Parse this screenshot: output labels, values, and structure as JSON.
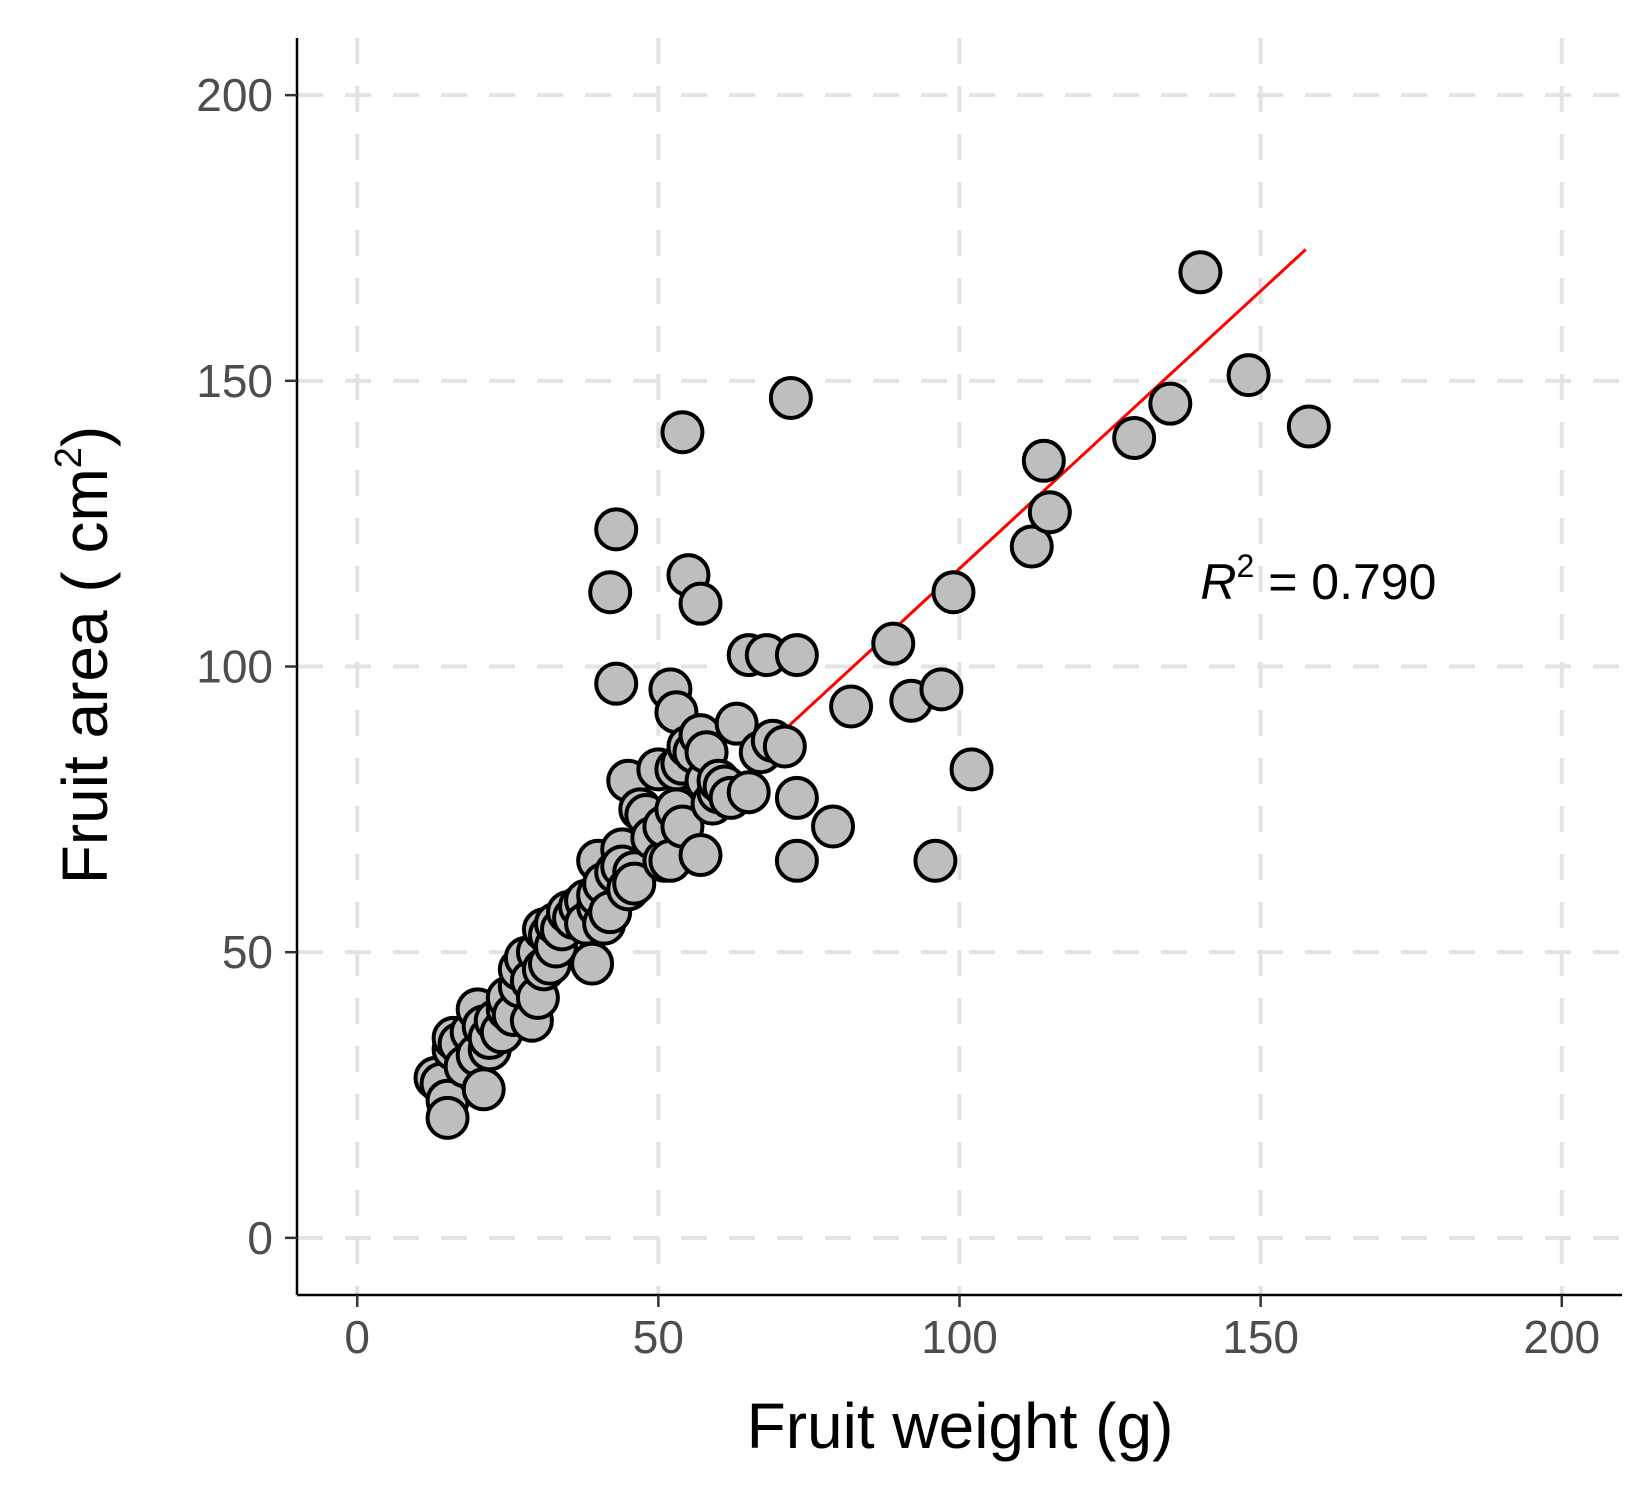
{
  "chart_data": {
    "type": "scatter",
    "xlabel": "Fruit weight (g)",
    "ylabel_main": "Fruit area ( cm",
    "ylabel_sup": "2",
    "ylabel_close": ")",
    "xlim": [
      -10,
      210
    ],
    "ylim": [
      -10,
      210
    ],
    "x_ticks": [
      0,
      50,
      100,
      150,
      200
    ],
    "y_ticks": [
      0,
      50,
      100,
      150,
      200
    ],
    "x_tick_labels": [
      "0",
      "50",
      "100",
      "150",
      "200"
    ],
    "y_tick_labels": [
      "0",
      "50",
      "100",
      "150",
      "200"
    ],
    "grid": "dashed major gridlines",
    "point_color": "#bebebe",
    "point_edge_color": "#000000",
    "fit_line": {
      "color": "#ff0000",
      "x": [
        70,
        157.5
      ],
      "y": [
        88,
        173
      ]
    },
    "annotation": {
      "r_symbol": "R",
      "sup": "2",
      "rest": " = 0.790",
      "x": 140,
      "y": 115
    },
    "points": [
      [
        13,
        28
      ],
      [
        14,
        27
      ],
      [
        15,
        24
      ],
      [
        15,
        21
      ],
      [
        16,
        33
      ],
      [
        16,
        35
      ],
      [
        17,
        34
      ],
      [
        18,
        30
      ],
      [
        19,
        36
      ],
      [
        20,
        32
      ],
      [
        20,
        40
      ],
      [
        21,
        37
      ],
      [
        21,
        26
      ],
      [
        22,
        33
      ],
      [
        22,
        35
      ],
      [
        23,
        38
      ],
      [
        24,
        36
      ],
      [
        25,
        40
      ],
      [
        25,
        42
      ],
      [
        26,
        39
      ],
      [
        27,
        44
      ],
      [
        27,
        47
      ],
      [
        28,
        49
      ],
      [
        29,
        38
      ],
      [
        29,
        45
      ],
      [
        30,
        42
      ],
      [
        30,
        50
      ],
      [
        31,
        47
      ],
      [
        31,
        54
      ],
      [
        32,
        48
      ],
      [
        32,
        53
      ],
      [
        33,
        51
      ],
      [
        33,
        55
      ],
      [
        34,
        54
      ],
      [
        35,
        57
      ],
      [
        36,
        56
      ],
      [
        37,
        58
      ],
      [
        38,
        59
      ],
      [
        38,
        55
      ],
      [
        39,
        48
      ],
      [
        40,
        58
      ],
      [
        40,
        60
      ],
      [
        40,
        66
      ],
      [
        41,
        62
      ],
      [
        41,
        55
      ],
      [
        42,
        57
      ],
      [
        42,
        113
      ],
      [
        43,
        97
      ],
      [
        43,
        124
      ],
      [
        43,
        64
      ],
      [
        44,
        68
      ],
      [
        44,
        65
      ],
      [
        45,
        61
      ],
      [
        45,
        80
      ],
      [
        46,
        64
      ],
      [
        46,
        62
      ],
      [
        47,
        75
      ],
      [
        48,
        74
      ],
      [
        49,
        70
      ],
      [
        50,
        82
      ],
      [
        51,
        66
      ],
      [
        51,
        72
      ],
      [
        52,
        96
      ],
      [
        52,
        66
      ],
      [
        53,
        92
      ],
      [
        53,
        75
      ],
      [
        53,
        82
      ],
      [
        54,
        72
      ],
      [
        54,
        83
      ],
      [
        54,
        141
      ],
      [
        55,
        116
      ],
      [
        55,
        86
      ],
      [
        56,
        85
      ],
      [
        57,
        111
      ],
      [
        57,
        67
      ],
      [
        57,
        88
      ],
      [
        58,
        80
      ],
      [
        58,
        85
      ],
      [
        59,
        76
      ],
      [
        60,
        78
      ],
      [
        60,
        80
      ],
      [
        61,
        79
      ],
      [
        62,
        77
      ],
      [
        63,
        90
      ],
      [
        65,
        102
      ],
      [
        65,
        78
      ],
      [
        67,
        85
      ],
      [
        68,
        102
      ],
      [
        69,
        87
      ],
      [
        71,
        86
      ],
      [
        72,
        147
      ],
      [
        73,
        102
      ],
      [
        73,
        77
      ],
      [
        73,
        66
      ],
      [
        79,
        72
      ],
      [
        82,
        93
      ],
      [
        89,
        104
      ],
      [
        92,
        94
      ],
      [
        96,
        66
      ],
      [
        97,
        96
      ],
      [
        99,
        113
      ],
      [
        102,
        82
      ],
      [
        112,
        121
      ],
      [
        114,
        136
      ],
      [
        115,
        127
      ],
      [
        129,
        140
      ],
      [
        135,
        146
      ],
      [
        140,
        169
      ],
      [
        148,
        151
      ],
      [
        158,
        142
      ]
    ]
  }
}
